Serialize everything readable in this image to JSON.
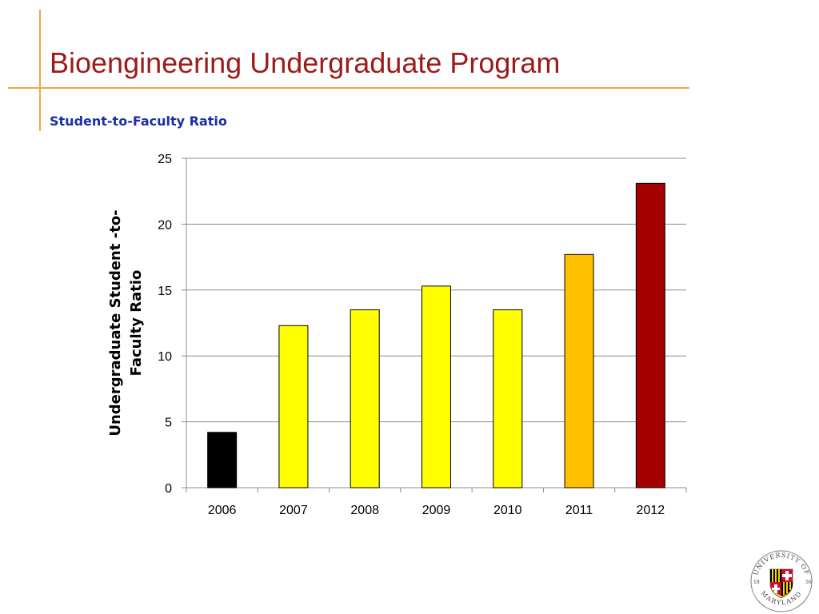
{
  "slide": {
    "title": "Bioengineering Undergraduate Program",
    "subtitle": "Student-to-Faculty Ratio"
  },
  "chart_data": {
    "type": "bar",
    "ylabel": "Undergraduate Student -to-Faculty Ratio",
    "ylabel_lines": [
      "Undergraduate Student -to-",
      "Faculty Ratio"
    ],
    "categories": [
      "2006",
      "2007",
      "2008",
      "2009",
      "2010",
      "2011",
      "2012"
    ],
    "values": [
      4.2,
      12.3,
      13.5,
      15.3,
      13.5,
      17.7,
      23.1
    ],
    "bar_colors": [
      "#000000",
      "#ffff00",
      "#ffff00",
      "#ffff00",
      "#ffff00",
      "#ffc000",
      "#a50000"
    ],
    "ylim": [
      0,
      25
    ],
    "yticks": [
      0,
      5,
      10,
      15,
      20,
      25
    ],
    "grid": true,
    "legend": "none"
  },
  "logo": {
    "top_text": "UNIVERSITY OF",
    "bottom_text": "MARYLAND",
    "year_left": "18",
    "year_right": "56"
  }
}
